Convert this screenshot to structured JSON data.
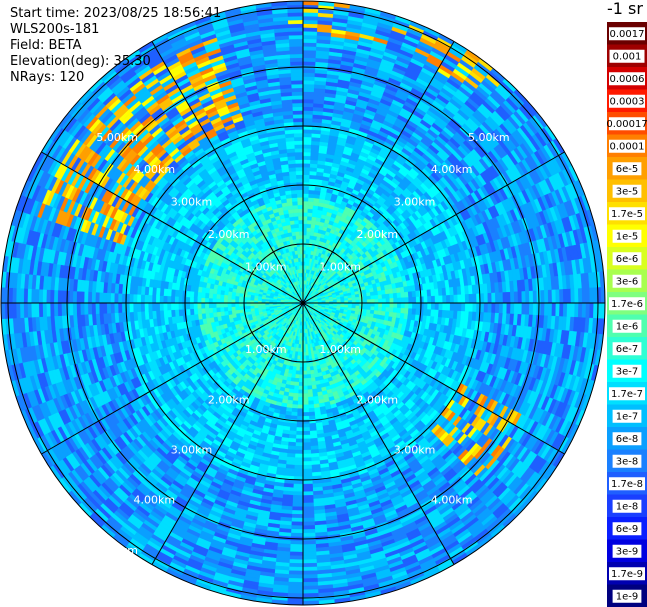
{
  "info": {
    "start_time": "Start time: 2023/08/25 18:56:41",
    "instrument": "WLS200s-181",
    "field": "Field: BETA",
    "elevation": "Elevation(deg): 35.30",
    "nrays": "NRays: 120"
  },
  "colorbar": {
    "unit_label": "-1 sr",
    "labels": [
      "0.0017",
      "0.001",
      "0.0006",
      "0.0003",
      "0.00017",
      "0.0001",
      "6e-5",
      "3e-5",
      "1.7e-5",
      "1e-5",
      "6e-6",
      "3e-6",
      "1.7e-6",
      "1e-6",
      "6e-7",
      "3e-7",
      "1.7e-7",
      "1e-7",
      "6e-8",
      "3e-8",
      "1.7e-8",
      "1e-8",
      "6e-9",
      "3e-9",
      "1.7e-9",
      "1e-9"
    ],
    "colors": [
      "#6a0000",
      "#9e0000",
      "#d40000",
      "#ff1a00",
      "#ff4d00",
      "#ff7f00",
      "#ff9f00",
      "#ffbf00",
      "#ffdf00",
      "#ffff00",
      "#d9ff1f",
      "#a8ff4f",
      "#7fff7f",
      "#4fffaf",
      "#2fffd4",
      "#00ffff",
      "#00dfff",
      "#00bfff",
      "#0a9fff",
      "#1a80ff",
      "#1f5fff",
      "#1a3fff",
      "#0a1fff",
      "#0000e0",
      "#0000b0",
      "#00007f"
    ]
  },
  "range_rings": [
    {
      "label": "1.00km",
      "km": 1
    },
    {
      "label": "2.00km",
      "km": 2
    },
    {
      "label": "3.00km",
      "km": 3
    },
    {
      "label": "4.00km",
      "km": 4
    },
    {
      "label": "5.00km",
      "km": 5
    }
  ]
}
